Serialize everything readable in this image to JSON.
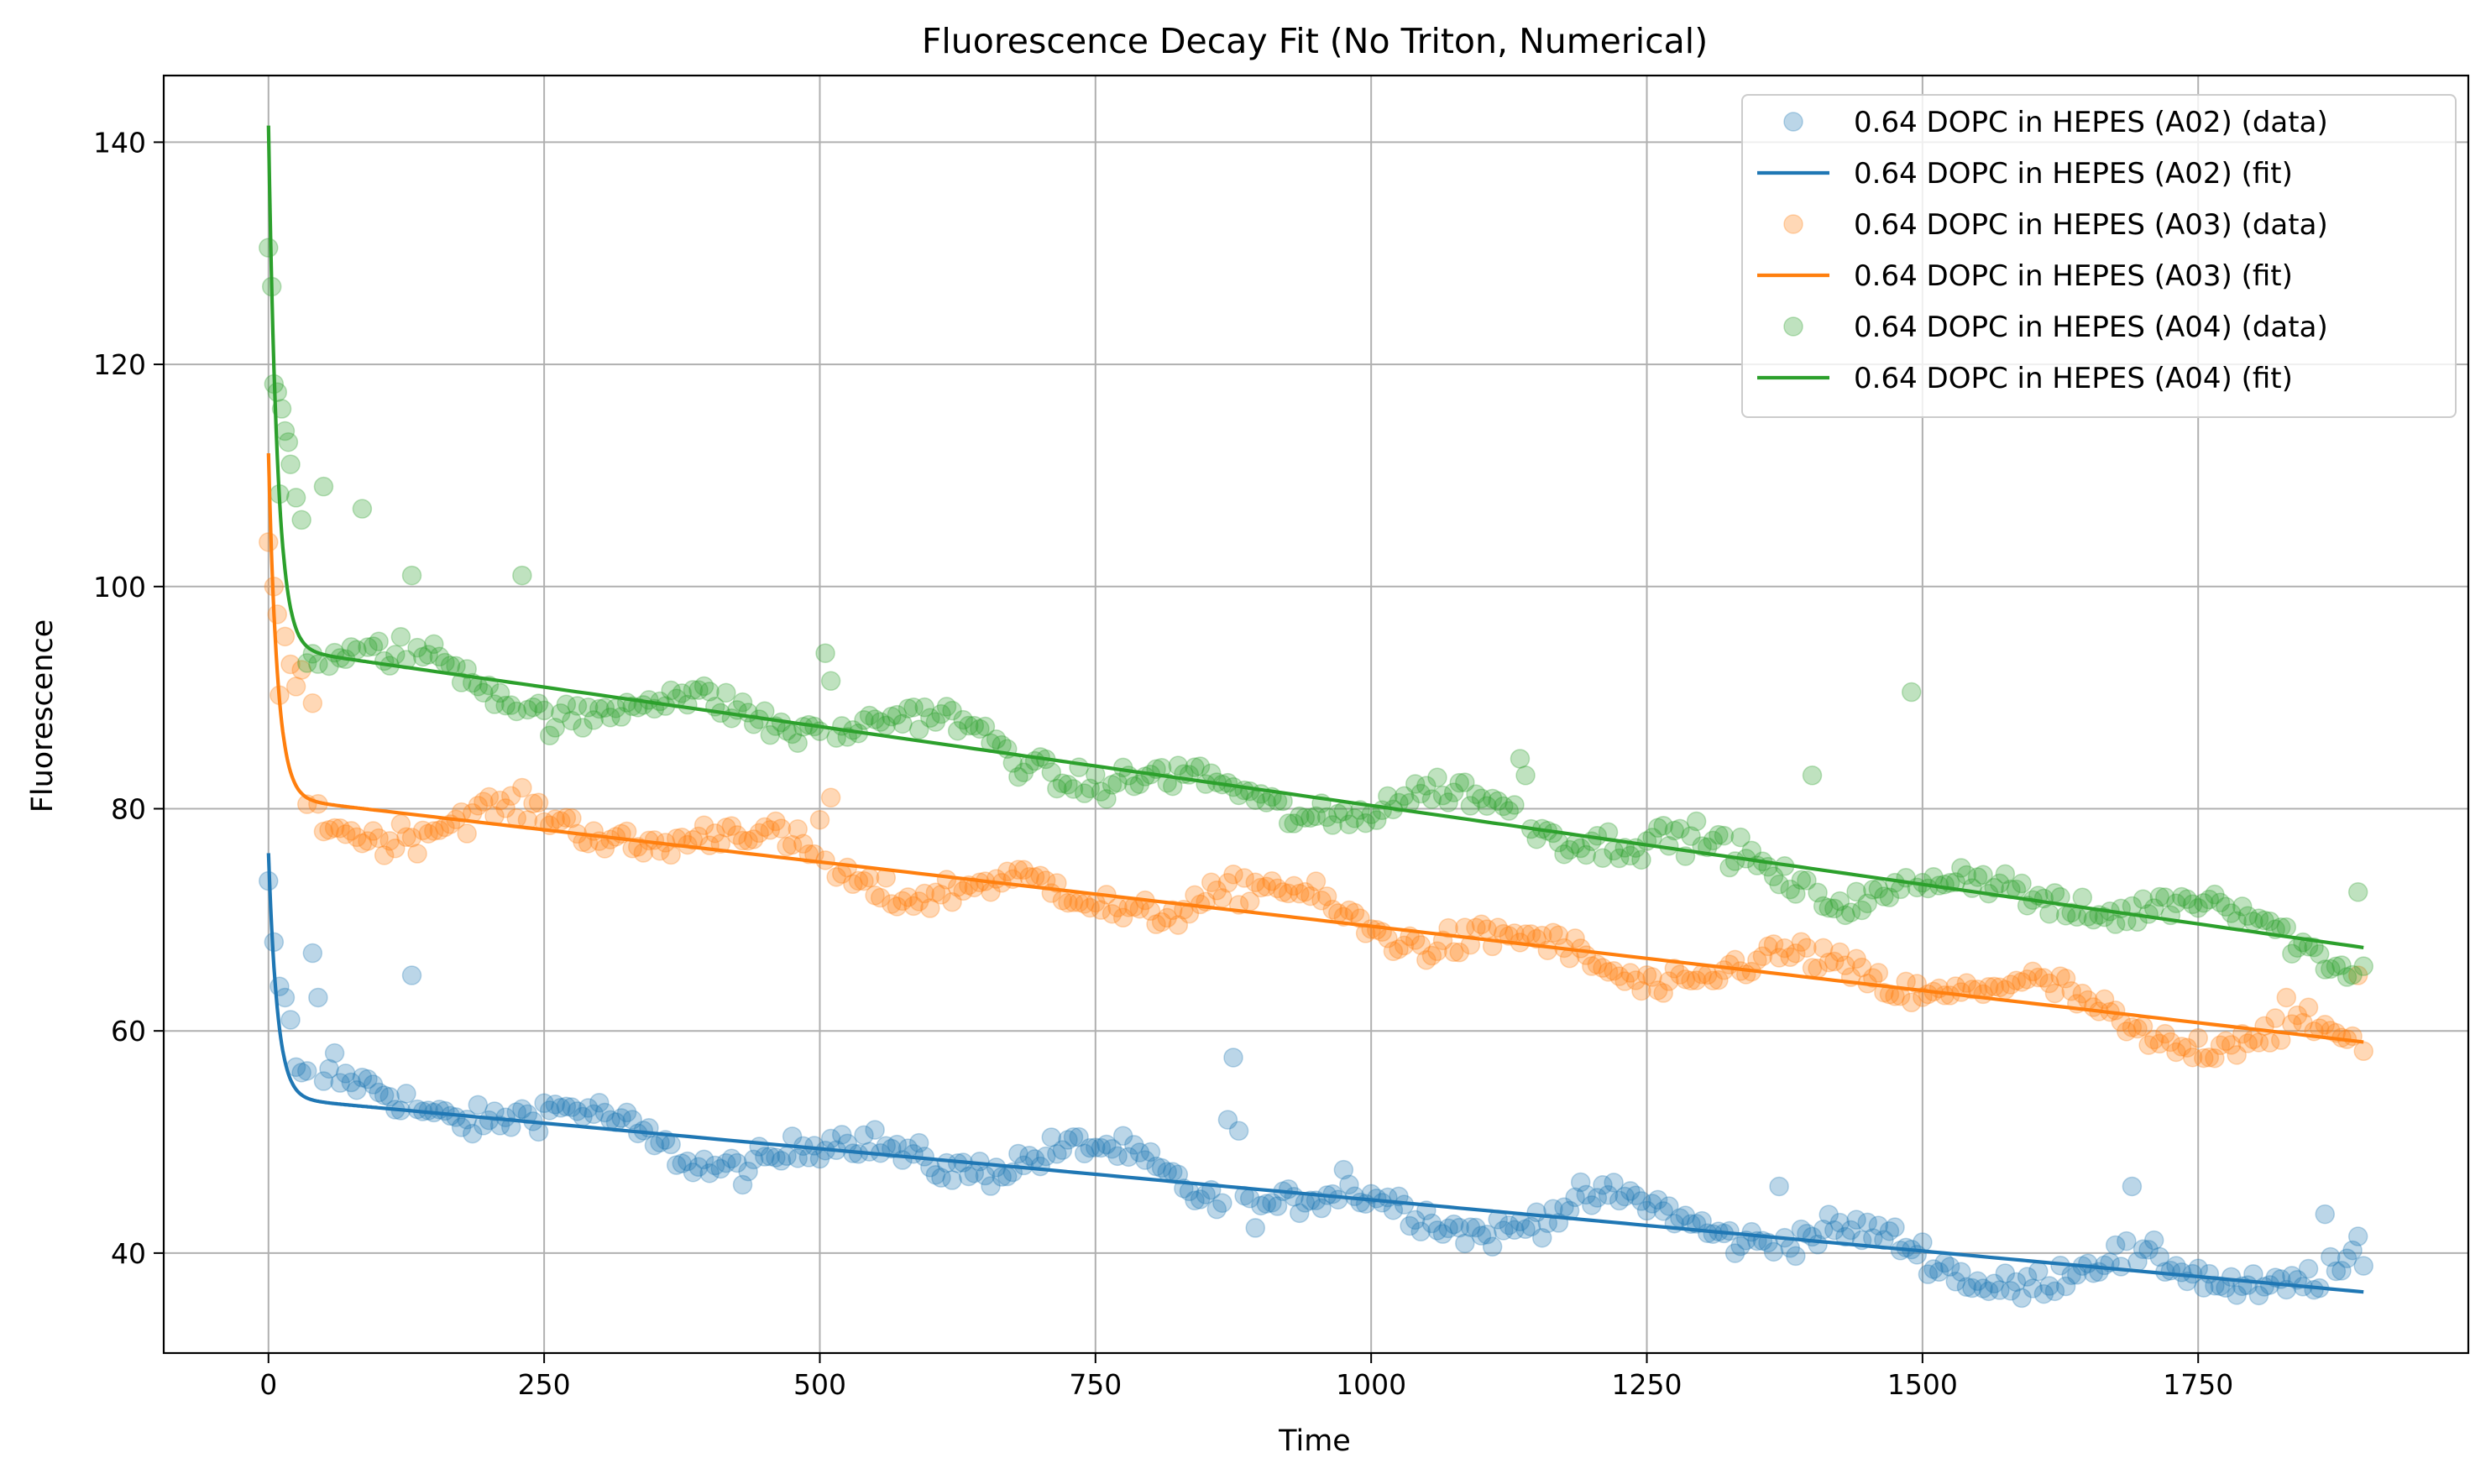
{
  "chart_data": {
    "type": "scatter",
    "title": "Fluorescence Decay Fit (No Triton, Numerical)",
    "xlabel": "Time",
    "ylabel": "Fluorescence",
    "xlim": [
      -95,
      1995
    ],
    "ylim": [
      31,
      146
    ],
    "xticks": [
      0,
      250,
      500,
      750,
      1000,
      1250,
      1500,
      1750
    ],
    "yticks": [
      40,
      60,
      80,
      100,
      120,
      140
    ],
    "grid": true,
    "legend_position": "top-right",
    "series": [
      {
        "kind": "scatter",
        "name": "0.64 DOPC in HEPES (A02) (data)",
        "color": "#1f77b4",
        "model": {
          "fast_amp": 22,
          "fast_tau": 8,
          "start": 54,
          "end": 36.5
        },
        "anchors": [
          [
            0,
            73.5
          ],
          [
            5,
            68
          ],
          [
            10,
            64
          ],
          [
            15,
            63
          ],
          [
            20,
            61
          ],
          [
            40,
            67
          ],
          [
            45,
            63
          ],
          [
            60,
            58
          ],
          [
            130,
            65
          ],
          [
            875,
            57.6
          ],
          [
            870,
            52
          ],
          [
            880,
            51
          ],
          [
            975,
            47.5
          ],
          [
            1370,
            46
          ],
          [
            1690,
            46
          ],
          [
            1865,
            43.5
          ],
          [
            1895,
            41.5
          ]
        ]
      },
      {
        "kind": "line",
        "name": "0.64 DOPC in HEPES (A02) (fit)",
        "color": "#1f77b4",
        "model": {
          "fast_amp": 22,
          "fast_tau": 8,
          "start": 54,
          "end": 36.5
        }
      },
      {
        "kind": "scatter",
        "name": "0.64 DOPC in HEPES (A03) (data)",
        "color": "#ff7f0e",
        "model": {
          "fast_amp": 31,
          "fast_tau": 8,
          "start": 81,
          "end": 59
        },
        "anchors": [
          [
            0,
            104
          ],
          [
            5,
            100
          ],
          [
            8,
            97.5
          ],
          [
            15,
            95.5
          ],
          [
            20,
            93
          ],
          [
            25,
            91
          ],
          [
            30,
            92.5
          ],
          [
            40,
            89.5
          ],
          [
            500,
            79
          ],
          [
            510,
            81
          ],
          [
            1830,
            63
          ],
          [
            1895,
            65
          ]
        ]
      },
      {
        "kind": "line",
        "name": "0.64 DOPC in HEPES (A03) (fit)",
        "color": "#ff7f0e",
        "model": {
          "fast_amp": 31,
          "fast_tau": 8,
          "start": 81,
          "end": 59
        }
      },
      {
        "kind": "scatter",
        "name": "0.64 DOPC in HEPES (A04) (data)",
        "color": "#2ca02c",
        "model": {
          "fast_amp": 47,
          "fast_tau": 8,
          "start": 94.5,
          "end": 67.5
        },
        "anchors": [
          [
            0,
            130.5
          ],
          [
            3,
            127
          ],
          [
            8,
            117.5
          ],
          [
            12,
            116
          ],
          [
            15,
            114
          ],
          [
            18,
            113
          ],
          [
            20,
            111
          ],
          [
            25,
            108
          ],
          [
            30,
            106
          ],
          [
            50,
            109
          ],
          [
            85,
            107
          ],
          [
            130,
            101
          ],
          [
            230,
            101
          ],
          [
            505,
            94
          ],
          [
            510,
            91.5
          ],
          [
            1135,
            84.5
          ],
          [
            1140,
            83
          ],
          [
            1400,
            83
          ],
          [
            1490,
            90.5
          ],
          [
            1895,
            72.5
          ]
        ]
      },
      {
        "kind": "line",
        "name": "0.64 DOPC in HEPES (A04) (fit)",
        "color": "#2ca02c",
        "model": {
          "fast_amp": 47,
          "fast_tau": 8,
          "start": 94.5,
          "end": 67.5
        }
      }
    ]
  }
}
